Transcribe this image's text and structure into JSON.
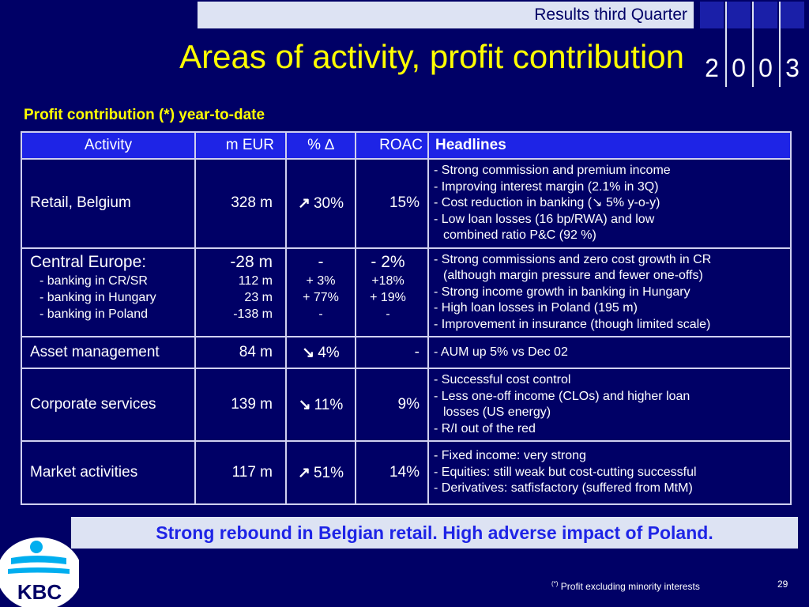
{
  "header": {
    "results_label": "Results third Quarter",
    "title": "Areas of activity, profit contribution",
    "year_digits": [
      "2",
      "0",
      "0",
      "3"
    ]
  },
  "subtitle": "Profit contribution (*) year-to-date",
  "table": {
    "columns": [
      "Activity",
      "m EUR",
      "% ∆",
      "ROAC",
      "Headlines"
    ],
    "rows": {
      "retail": {
        "activity": "Retail, Belgium",
        "meur": "328 m",
        "pct": "30%",
        "pct_arrow": "↗",
        "roac": "15%",
        "headlines": [
          "- Strong commission and premium income",
          "- Improving interest margin (2.1% in 3Q)",
          "- Cost reduction in banking (↘ 5% y-o-y)",
          "- Low loan losses (16 bp/RWA) and low",
          "combined ratio P&C (92 %)"
        ]
      },
      "central_europe": {
        "activity": "Central Europe:",
        "meur": "-28 m",
        "pct": "-",
        "roac": "- 2%",
        "sub_items": [
          {
            "activity": "- banking in CR/SR",
            "meur": "112 m",
            "pct": "+ 3%",
            "roac": "+18%"
          },
          {
            "activity": "- banking in Hungary",
            "meur": "23 m",
            "pct": "+ 77%",
            "roac": "+ 19%"
          },
          {
            "activity": "- banking in Poland",
            "meur": "-138 m",
            "pct": "-",
            "roac": "-"
          }
        ],
        "headlines": [
          "- Strong commissions and zero cost growth in CR",
          "(although margin pressure and fewer one-offs)",
          "- Strong income growth in banking in Hungary",
          "- High loan losses in Poland (195 m)",
          "- Improvement in insurance (though limited scale)"
        ]
      },
      "asset_mgmt": {
        "activity": "Asset management",
        "meur": "84 m",
        "pct": "4%",
        "pct_arrow": "↘",
        "roac": "-",
        "headlines": [
          "- AUM up 5% vs Dec 02"
        ]
      },
      "corporate": {
        "activity": "Corporate services",
        "meur": "139 m",
        "pct": "11%",
        "pct_arrow": "↘",
        "roac": "9%",
        "headlines": [
          "- Successful cost control",
          "- Less one-off income (CLOs) and higher loan",
          "losses (US energy)",
          "- R/I out of the red"
        ]
      },
      "market": {
        "activity": "Market activities",
        "meur": "117 m",
        "pct": "51%",
        "pct_arrow": "↗",
        "roac": "14%",
        "headlines": [
          "- Fixed income: very strong",
          "- Equities: still weak but cost-cutting successful",
          "- Derivatives: satfisfactory (suffered from MtM)"
        ]
      }
    }
  },
  "banner": "Strong rebound in Belgian retail. High adverse impact of Poland.",
  "footnote": {
    "marker": "(*)",
    "text": "Profit excluding minority interests"
  },
  "page_number": "29",
  "logo": {
    "text": "KBC",
    "icon": "kbc-figure-logo"
  },
  "colors": {
    "background": "#000066",
    "title": "#ffff00",
    "table_header": "#1e24e6",
    "light_band": "#dde3f3",
    "logo_cyan": "#00aeef"
  }
}
